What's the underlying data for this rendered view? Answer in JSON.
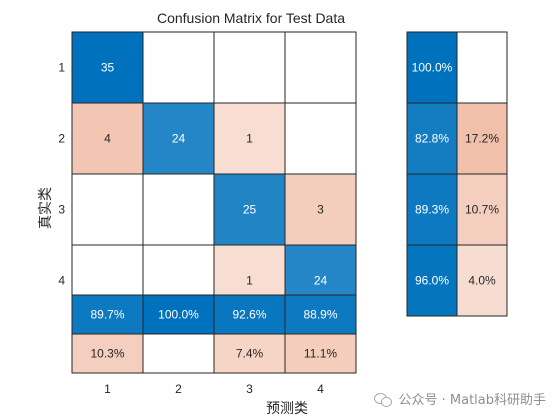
{
  "chart_data": {
    "type": "heatmap",
    "title": "Confusion Matrix for Test Data",
    "xlabel": "预测类",
    "ylabel": "真实类",
    "classes": [
      "1",
      "2",
      "3",
      "4"
    ],
    "matrix": [
      [
        35,
        0,
        0,
        0
      ],
      [
        4,
        24,
        1,
        0
      ],
      [
        0,
        0,
        25,
        3
      ],
      [
        0,
        0,
        1,
        24
      ]
    ],
    "matrix_labels": [
      [
        "35",
        "",
        "",
        ""
      ],
      [
        "4",
        "24",
        "1",
        ""
      ],
      [
        "",
        "",
        "25",
        "3"
      ],
      [
        "",
        "",
        "1",
        "24"
      ]
    ],
    "row_summary": {
      "correct": [
        100.0,
        82.8,
        89.3,
        96.0
      ],
      "incorrect": [
        0.0,
        17.2,
        10.7,
        4.0
      ],
      "correct_labels": [
        "100.0%",
        "82.8%",
        "89.3%",
        "96.0%"
      ],
      "incorrect_labels": [
        "",
        "17.2%",
        "10.7%",
        "4.0%"
      ]
    },
    "column_summary": {
      "correct": [
        89.7,
        100.0,
        92.6,
        88.9
      ],
      "incorrect": [
        10.3,
        0.0,
        7.4,
        11.1
      ],
      "correct_labels": [
        "89.7%",
        "100.0%",
        "92.6%",
        "88.9%"
      ],
      "incorrect_labels": [
        "10.3%",
        "",
        "7.4%",
        "11.1%"
      ]
    },
    "colors": {
      "correct": "#0072bd",
      "incorrect": "#d95319",
      "empty": "#ffffff",
      "grid": "#262626"
    }
  },
  "watermark": {
    "text": "公众号 · Matlab科研助手",
    "icon": "wechat-icon"
  }
}
